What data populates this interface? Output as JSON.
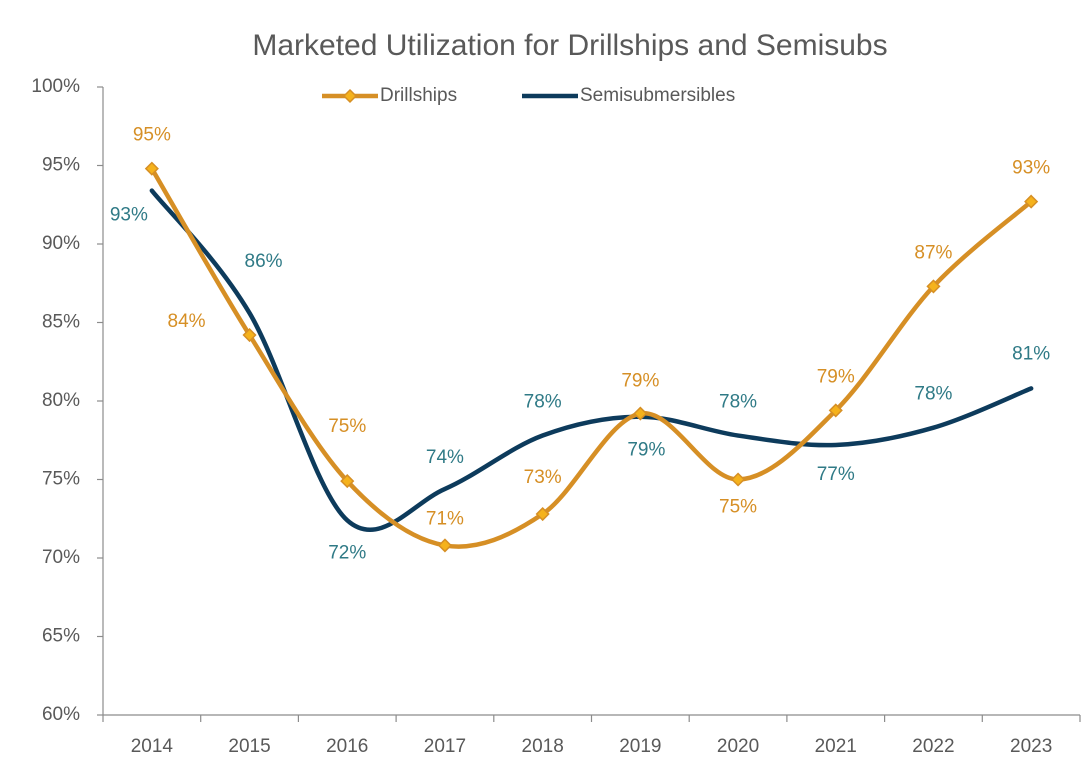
{
  "chart_data": {
    "type": "line",
    "title": "Marketed Utilization for Drillships and Semisubs",
    "categories": [
      "2014",
      "2015",
      "2016",
      "2017",
      "2018",
      "2019",
      "2020",
      "2021",
      "2022",
      "2023"
    ],
    "series": [
      {
        "name": "Drillships",
        "color": "#d68f25",
        "label_color": "#d68f25",
        "marker": "diamond",
        "values": [
          94.8,
          84.2,
          74.9,
          70.8,
          72.8,
          79.2,
          75.0,
          79.4,
          87.3,
          92.7
        ],
        "value_labels": [
          "95%",
          "84%",
          "75%",
          "71%",
          "73%",
          "79%",
          "75%",
          "79%",
          "87%",
          "93%"
        ]
      },
      {
        "name": "Semisubmersibles",
        "color": "#0d3b5c",
        "label_color": "#2f7a86",
        "marker": "none",
        "values": [
          93.4,
          85.6,
          72.4,
          74.4,
          77.8,
          79.0,
          77.8,
          77.2,
          78.3,
          80.8
        ],
        "value_labels": [
          "93%",
          "86%",
          "72%",
          "74%",
          "78%",
          "79%",
          "78%",
          "77%",
          "78%",
          "81%"
        ]
      }
    ],
    "ylim": [
      60,
      100
    ],
    "yticks": [
      {
        "value": 60,
        "label": "60%"
      },
      {
        "value": 65,
        "label": "65%"
      },
      {
        "value": 70,
        "label": "70%"
      },
      {
        "value": 75,
        "label": "75%"
      },
      {
        "value": 80,
        "label": "80%"
      },
      {
        "value": 85,
        "label": "85%"
      },
      {
        "value": 90,
        "label": "90%"
      },
      {
        "value": 95,
        "label": "95%"
      },
      {
        "value": 100,
        "label": "100%"
      }
    ],
    "smooth": true,
    "grid": false,
    "legend": "top"
  }
}
